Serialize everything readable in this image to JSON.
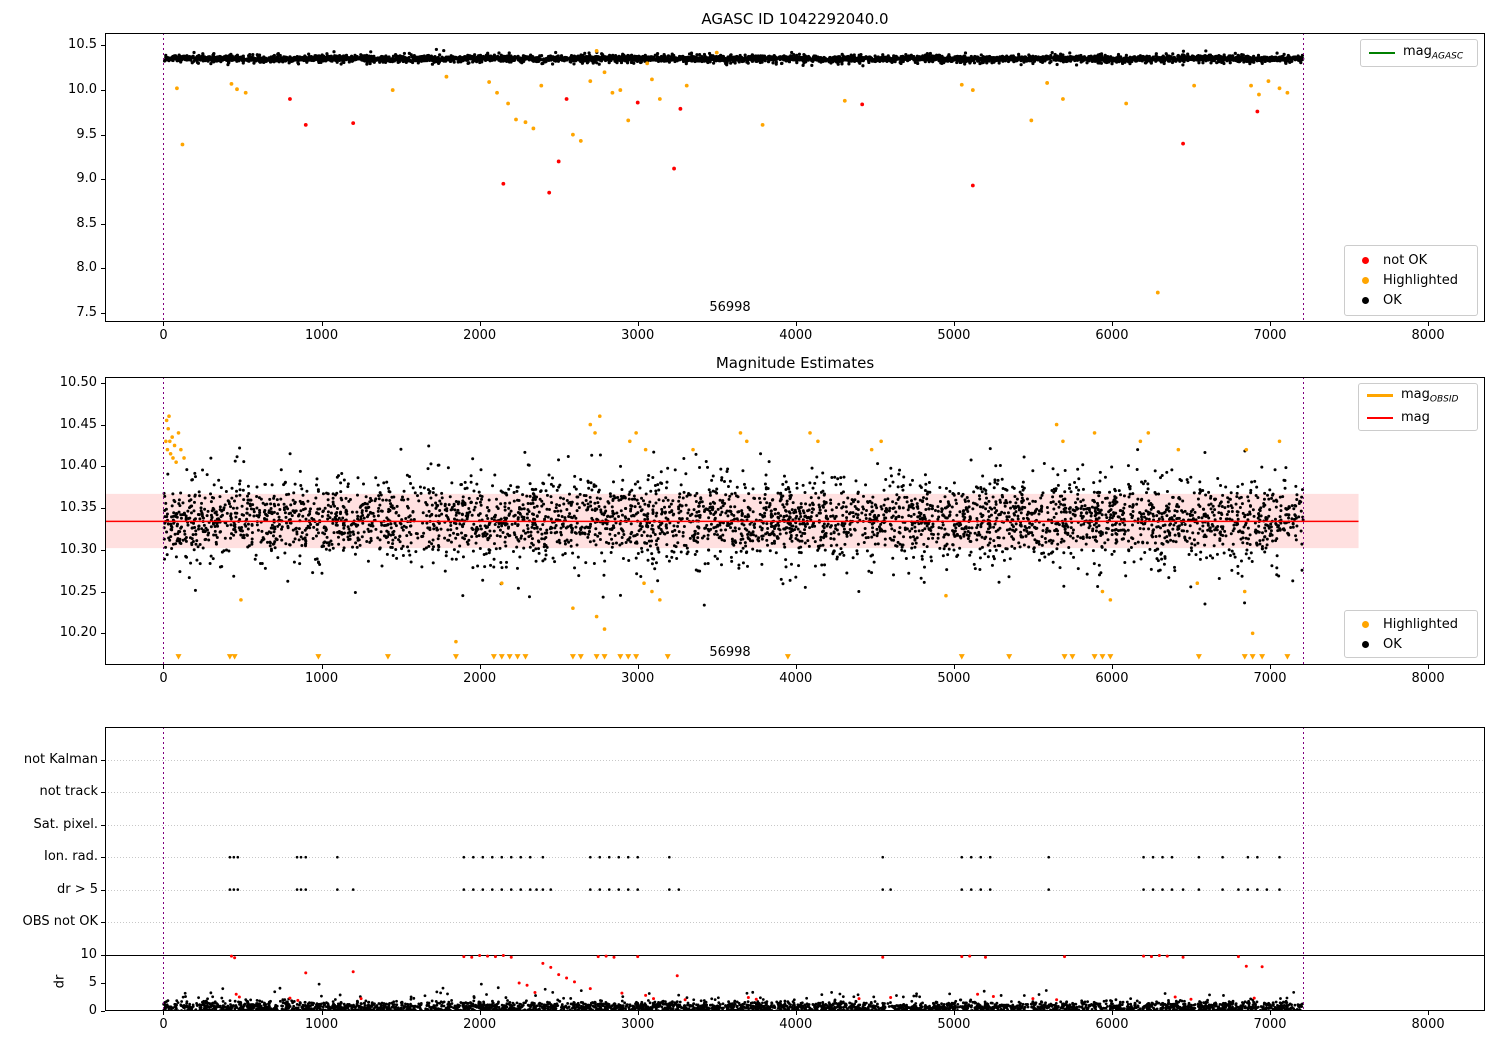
{
  "chart_data": [
    {
      "type": "scatter",
      "title": "AGASC ID 1042292040.0",
      "xlim": [
        -370,
        8360
      ],
      "ylim": [
        7.4,
        10.64
      ],
      "x_ticks": [
        0,
        1000,
        2000,
        3000,
        4000,
        5000,
        6000,
        7000,
        8000
      ],
      "y_ticks": [
        "7.5",
        "8.0",
        "8.5",
        "9.0",
        "9.5",
        "10.0",
        "10.5"
      ],
      "vlines": {
        "x": [
          0,
          7210
        ],
        "color": "#800080"
      },
      "annotation": {
        "text": "56998",
        "x": 3580,
        "y": 7.56
      },
      "legend_top": [
        {
          "label": "mag",
          "sub": "AGASC",
          "color": "#008000",
          "marker": "line"
        }
      ],
      "legend_bottom": [
        {
          "label": "not OK",
          "color": "#ff0000",
          "marker": "dot"
        },
        {
          "label": "Highlighted",
          "color": "#ffa500",
          "marker": "dot"
        },
        {
          "label": "OK",
          "color": "#000000",
          "marker": "dot"
        }
      ],
      "series": {
        "ok": {
          "label": "OK",
          "color": "#000000",
          "cloud_layers": [
            {
              "n": 3200,
              "x_range": [
                0,
                7210
              ],
              "mean": 10.352,
              "std": 0.013,
              "clip": [
                10.3,
                10.42
              ],
              "wiggle_amp": 0.006,
              "wiggle_period": 900,
              "seed": 11
            },
            {
              "n": 1400,
              "x_range": [
                0,
                7210
              ],
              "mean": 10.35,
              "std": 0.03,
              "clip": [
                10.27,
                10.46
              ],
              "seed": 12
            }
          ]
        },
        "highlighted": {
          "label": "Highlighted",
          "color": "#ffa500",
          "points": [
            [
              85,
              10.02
            ],
            [
              120,
              9.39
            ],
            [
              430,
              10.07
            ],
            [
              465,
              10.01
            ],
            [
              520,
              9.97
            ],
            [
              1450,
              10.0
            ],
            [
              1790,
              10.15
            ],
            [
              2060,
              10.09
            ],
            [
              2110,
              9.97
            ],
            [
              2180,
              9.85
            ],
            [
              2230,
              9.67
            ],
            [
              2290,
              9.64
            ],
            [
              2340,
              9.57
            ],
            [
              2390,
              10.05
            ],
            [
              2590,
              9.5
            ],
            [
              2640,
              9.43
            ],
            [
              2700,
              10.1
            ],
            [
              2740,
              10.44
            ],
            [
              2790,
              10.2
            ],
            [
              2840,
              9.97
            ],
            [
              2890,
              10.0
            ],
            [
              2940,
              9.66
            ],
            [
              3060,
              10.3
            ],
            [
              3090,
              10.12
            ],
            [
              3140,
              9.9
            ],
            [
              3310,
              10.05
            ],
            [
              3500,
              10.42
            ],
            [
              3790,
              9.61
            ],
            [
              4310,
              9.88
            ],
            [
              5050,
              10.06
            ],
            [
              5120,
              10.0
            ],
            [
              5490,
              9.66
            ],
            [
              5590,
              10.08
            ],
            [
              5690,
              9.9
            ],
            [
              6090,
              9.85
            ],
            [
              6290,
              7.73
            ],
            [
              6520,
              10.05
            ],
            [
              6880,
              10.05
            ],
            [
              6930,
              9.95
            ],
            [
              6990,
              10.1
            ],
            [
              7060,
              10.02
            ],
            [
              7110,
              9.97
            ]
          ]
        },
        "not_ok": {
          "label": "not OK",
          "color": "#ff0000",
          "points": [
            [
              800,
              9.9
            ],
            [
              900,
              9.61
            ],
            [
              1200,
              9.63
            ],
            [
              2150,
              8.95
            ],
            [
              2440,
              8.85
            ],
            [
              2500,
              9.2
            ],
            [
              2550,
              9.9
            ],
            [
              3000,
              9.86
            ],
            [
              3230,
              9.12
            ],
            [
              3270,
              9.79
            ],
            [
              4420,
              9.84
            ],
            [
              5120,
              8.93
            ],
            [
              6450,
              9.4
            ],
            [
              6920,
              9.76
            ]
          ]
        }
      }
    },
    {
      "type": "scatter",
      "title": "Magnitude Estimates",
      "xlim": [
        -370,
        8360
      ],
      "ylim": [
        10.162,
        10.507
      ],
      "x_ticks": [
        0,
        1000,
        2000,
        3000,
        4000,
        5000,
        6000,
        7000,
        8000
      ],
      "y_ticks": [
        "10.20",
        "10.25",
        "10.30",
        "10.35",
        "10.40",
        "10.45",
        "10.50"
      ],
      "vlines": {
        "x": [
          0,
          7210
        ],
        "color": "#800080"
      },
      "annotation": {
        "text": "56998",
        "x": 3580,
        "y": 10.175
      },
      "mag_line": {
        "value": 10.334,
        "band": [
          10.302,
          10.367
        ],
        "x_range": [
          -370,
          7560
        ],
        "color": "#ff0000",
        "band_color": "rgba(255,0,0,0.12)"
      },
      "legend_top": [
        {
          "label": "mag",
          "sub": "OBSID",
          "color": "#ffa500",
          "marker": "thickline"
        },
        {
          "label": "mag",
          "sub": "",
          "color": "#ff0000",
          "marker": "line"
        }
      ],
      "legend_bottom": [
        {
          "label": "Highlighted",
          "color": "#ffa500",
          "marker": "dot"
        },
        {
          "label": "OK",
          "color": "#000000",
          "marker": "dot"
        }
      ],
      "series": {
        "ok": {
          "label": "OK",
          "color": "#000000",
          "cloud_layers": [
            {
              "n": 2600,
              "x_range": [
                0,
                7210
              ],
              "mean": 10.336,
              "std": 0.02,
              "clip": [
                10.27,
                10.405
              ],
              "seed": 7
            },
            {
              "n": 1400,
              "x_range": [
                0,
                7210
              ],
              "mean": 10.336,
              "std": 0.035,
              "clip": [
                10.23,
                10.425
              ],
              "seed": 8
            }
          ]
        },
        "highlighted": {
          "label": "Highlighted",
          "color": "#ffa500",
          "points": [
            [
              15,
              10.43
            ],
            [
              20,
              10.455
            ],
            [
              25,
              10.42
            ],
            [
              30,
              10.445
            ],
            [
              35,
              10.46
            ],
            [
              40,
              10.43
            ],
            [
              45,
              10.415
            ],
            [
              55,
              10.435
            ],
            [
              60,
              10.41
            ],
            [
              70,
              10.425
            ],
            [
              80,
              10.405
            ],
            [
              95,
              10.44
            ],
            [
              110,
              10.42
            ],
            [
              130,
              10.41
            ],
            [
              2700,
              10.45
            ],
            [
              2730,
              10.44
            ],
            [
              2760,
              10.46
            ],
            [
              2950,
              10.43
            ],
            [
              2990,
              10.44
            ],
            [
              3050,
              10.42
            ],
            [
              3350,
              10.42
            ],
            [
              3650,
              10.44
            ],
            [
              3690,
              10.43
            ],
            [
              4090,
              10.44
            ],
            [
              4140,
              10.43
            ],
            [
              4480,
              10.42
            ],
            [
              4540,
              10.43
            ],
            [
              5650,
              10.45
            ],
            [
              5690,
              10.43
            ],
            [
              5890,
              10.44
            ],
            [
              6180,
              10.43
            ],
            [
              6230,
              10.44
            ],
            [
              6420,
              10.42
            ],
            [
              6850,
              10.42
            ],
            [
              7060,
              10.43
            ],
            [
              490,
              10.24
            ],
            [
              1850,
              10.19
            ],
            [
              2140,
              10.26
            ],
            [
              2590,
              10.23
            ],
            [
              2740,
              10.22
            ],
            [
              2790,
              10.205
            ],
            [
              3040,
              10.26
            ],
            [
              3090,
              10.25
            ],
            [
              3140,
              10.24
            ],
            [
              4950,
              10.245
            ],
            [
              5940,
              10.25
            ],
            [
              5990,
              10.24
            ],
            [
              6540,
              10.26
            ],
            [
              6840,
              10.25
            ],
            [
              6890,
              10.2
            ]
          ]
        },
        "clipped": {
          "label": "clipped-low-triangles",
          "color": "#ffa500",
          "y": 10.172,
          "x": [
            95,
            420,
            450,
            980,
            1420,
            1850,
            2090,
            2140,
            2190,
            2240,
            2290,
            2590,
            2640,
            2740,
            2790,
            2890,
            2940,
            2990,
            3190,
            3950,
            5050,
            5350,
            5700,
            5750,
            5890,
            5940,
            5990,
            6550,
            6840,
            6890,
            6950,
            7110
          ]
        }
      }
    },
    {
      "type": "flags",
      "title": "",
      "xlim": [
        -370,
        8360
      ],
      "x_ticks": [
        0,
        1000,
        2000,
        3000,
        4000,
        5000,
        6000,
        7000,
        8000
      ],
      "vlines": {
        "x": [
          0,
          7210
        ],
        "color": "#800080"
      },
      "categories": [
        "not Kalman",
        "not track",
        "Sat. pixel.",
        "Ion. rad.",
        "dr > 5",
        "OBS not OK"
      ],
      "flag_points": [
        {
          "label": "Ion. rad.",
          "row": 3,
          "color": "#000000",
          "x": [
            420,
            445,
            470,
            845,
            870,
            900,
            1100,
            1900,
            1960,
            2020,
            2080,
            2140,
            2200,
            2260,
            2320,
            2400,
            2700,
            2760,
            2820,
            2880,
            2940,
            3000,
            3200,
            4550,
            5050,
            5110,
            5170,
            5230,
            5600,
            6200,
            6260,
            6320,
            6380,
            6550,
            6700,
            6860,
            6920,
            7060
          ]
        },
        {
          "label": "dr > 5",
          "row": 4,
          "color": "#000000",
          "x": [
            420,
            445,
            470,
            845,
            870,
            900,
            1100,
            1200,
            1900,
            1960,
            2020,
            2080,
            2140,
            2200,
            2260,
            2320,
            2360,
            2400,
            2450,
            2700,
            2760,
            2820,
            2880,
            2940,
            3000,
            3200,
            3260,
            4550,
            4600,
            5050,
            5110,
            5170,
            5230,
            5600,
            6200,
            6260,
            6320,
            6380,
            6450,
            6550,
            6700,
            6800,
            6860,
            6920,
            6980,
            7060
          ]
        }
      ],
      "dr": {
        "ylabel": "dr",
        "ticks": [
          "0",
          "5",
          "10"
        ],
        "threshold": 10,
        "threshold_color": "#000000",
        "ok_color": "#000000",
        "red_color": "#ff0000",
        "cloud_layers": [
          {
            "n": 3000,
            "x_range": [
              0,
              7210
            ],
            "mean": 0.7,
            "std": 0.55,
            "clip": [
              0.05,
              3.2
            ],
            "seed": 3
          },
          {
            "n": 70,
            "x_range": [
              0,
              7210
            ],
            "mean": 2.8,
            "std": 0.8,
            "clip": [
              1.5,
              4.8
            ],
            "seed": 5
          }
        ],
        "red_points": [
          [
            430,
            9.8
          ],
          [
            450,
            9.5
          ],
          [
            460,
            3.0
          ],
          [
            480,
            2.5
          ],
          [
            800,
            2.3
          ],
          [
            850,
            1.9
          ],
          [
            900,
            6.8
          ],
          [
            1200,
            7.0
          ],
          [
            1250,
            2.2
          ],
          [
            1900,
            9.7
          ],
          [
            1950,
            9.6
          ],
          [
            2000,
            9.9
          ],
          [
            2050,
            9.8
          ],
          [
            2100,
            9.7
          ],
          [
            2150,
            9.9
          ],
          [
            2200,
            9.6
          ],
          [
            2250,
            5.0
          ],
          [
            2300,
            4.6
          ],
          [
            2350,
            3.3
          ],
          [
            2400,
            8.5
          ],
          [
            2450,
            7.8
          ],
          [
            2500,
            6.5
          ],
          [
            2550,
            5.9
          ],
          [
            2600,
            5.2
          ],
          [
            2700,
            4.0
          ],
          [
            2750,
            9.7
          ],
          [
            2800,
            9.8
          ],
          [
            2850,
            9.6
          ],
          [
            2900,
            3.2
          ],
          [
            3000,
            9.7
          ],
          [
            3050,
            2.8
          ],
          [
            3100,
            2.2
          ],
          [
            3250,
            6.3
          ],
          [
            3300,
            2.0
          ],
          [
            3700,
            2.4
          ],
          [
            3750,
            2.1
          ],
          [
            4400,
            2.2
          ],
          [
            4550,
            9.6
          ],
          [
            4600,
            2.4
          ],
          [
            5050,
            9.7
          ],
          [
            5100,
            9.8
          ],
          [
            5150,
            3.0
          ],
          [
            5200,
            9.6
          ],
          [
            5250,
            2.6
          ],
          [
            5500,
            2.2
          ],
          [
            5650,
            2.0
          ],
          [
            5700,
            9.7
          ],
          [
            6200,
            9.8
          ],
          [
            6250,
            9.7
          ],
          [
            6300,
            9.9
          ],
          [
            6350,
            9.8
          ],
          [
            6400,
            2.5
          ],
          [
            6450,
            9.6
          ],
          [
            6500,
            2.1
          ],
          [
            6800,
            9.7
          ],
          [
            6850,
            8.0
          ],
          [
            6900,
            2.3
          ],
          [
            6950,
            7.9
          ]
        ]
      }
    }
  ]
}
